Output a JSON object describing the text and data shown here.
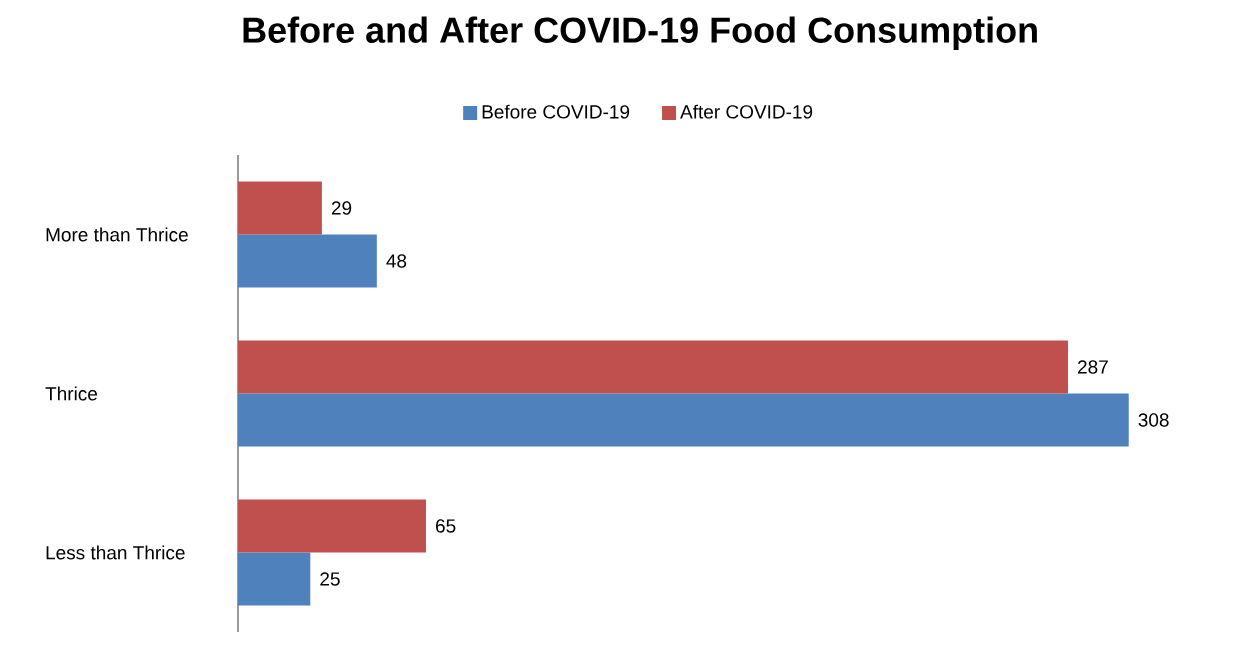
{
  "chart_data": {
    "type": "bar",
    "orientation": "horizontal",
    "title": "Before and After COVID-19 Food Consumption",
    "categories": [
      "More than Thrice",
      "Thrice",
      "Less than Thrice"
    ],
    "series": [
      {
        "name": "Before COVID-19",
        "color": "#4f81bd",
        "values": [
          48,
          308,
          25
        ]
      },
      {
        "name": "After COVID-19",
        "color": "#c0504d",
        "values": [
          29,
          287,
          65
        ]
      }
    ],
    "data_labels": true,
    "legend": "top"
  }
}
